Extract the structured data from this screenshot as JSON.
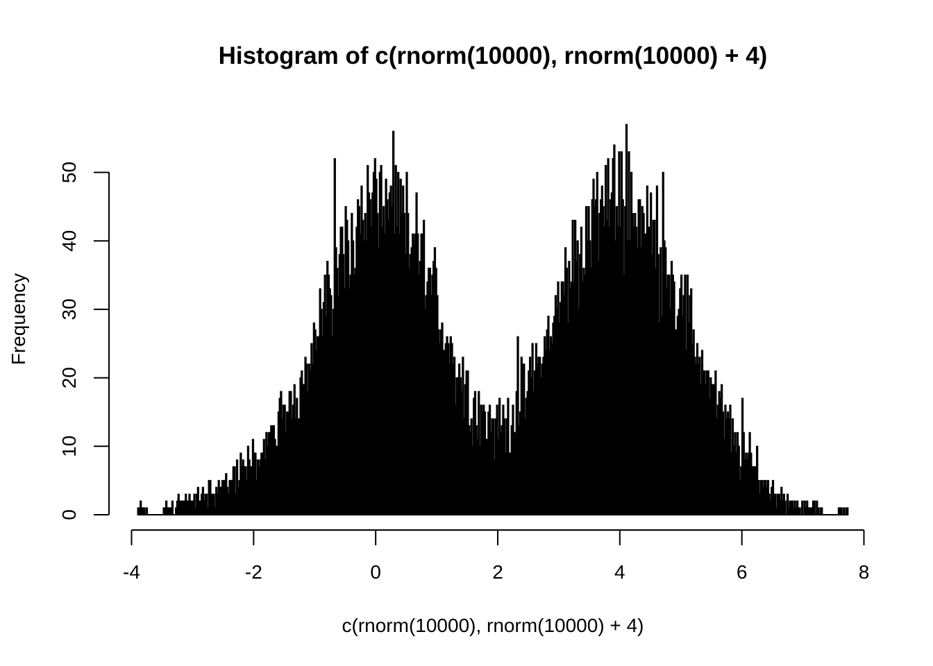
{
  "chart_data": {
    "type": "bar",
    "title": "Histogram of c(rnorm(10000), rnorm(10000) + 4)",
    "xlabel": "c(rnorm(10000), rnorm(10000) + 4)",
    "ylabel": "Frequency",
    "xlim": [
      -4,
      8
    ],
    "ylim": [
      0,
      57
    ],
    "x_ticks": [
      -4,
      -2,
      0,
      2,
      4,
      6,
      8
    ],
    "y_ticks": [
      0,
      10,
      20,
      30,
      40,
      50
    ],
    "bin_width": 0.02,
    "bin_start": -3.9,
    "grid": false,
    "legend": "none",
    "envelope": [
      [
        -3.9,
        1
      ],
      [
        -3.6,
        0
      ],
      [
        -3.4,
        1
      ],
      [
        -3.2,
        2
      ],
      [
        -3.0,
        2
      ],
      [
        -2.8,
        3
      ],
      [
        -2.6,
        4
      ],
      [
        -2.4,
        5
      ],
      [
        -2.2,
        6
      ],
      [
        -2.0,
        8
      ],
      [
        -1.8,
        10
      ],
      [
        -1.6,
        13
      ],
      [
        -1.4,
        16
      ],
      [
        -1.2,
        21
      ],
      [
        -1.0,
        26
      ],
      [
        -0.8,
        31
      ],
      [
        -0.6,
        37
      ],
      [
        -0.4,
        41
      ],
      [
        -0.2,
        44
      ],
      [
        0.0,
        46
      ],
      [
        0.2,
        45
      ],
      [
        0.4,
        43
      ],
      [
        0.6,
        40
      ],
      [
        0.8,
        36
      ],
      [
        1.0,
        31
      ],
      [
        1.2,
        25
      ],
      [
        1.4,
        20
      ],
      [
        1.6,
        16
      ],
      [
        1.8,
        14
      ],
      [
        2.0,
        13
      ],
      [
        2.2,
        14
      ],
      [
        2.4,
        17
      ],
      [
        2.6,
        21
      ],
      [
        2.8,
        25
      ],
      [
        3.0,
        31
      ],
      [
        3.2,
        36
      ],
      [
        3.4,
        40
      ],
      [
        3.6,
        44
      ],
      [
        3.8,
        46
      ],
      [
        4.0,
        47
      ],
      [
        4.2,
        45
      ],
      [
        4.4,
        43
      ],
      [
        4.6,
        40
      ],
      [
        4.8,
        36
      ],
      [
        5.0,
        31
      ],
      [
        5.2,
        26
      ],
      [
        5.4,
        21
      ],
      [
        5.6,
        16
      ],
      [
        5.8,
        12
      ],
      [
        6.0,
        9
      ],
      [
        6.2,
        7
      ],
      [
        6.4,
        4
      ],
      [
        6.6,
        3
      ],
      [
        6.8,
        2
      ],
      [
        7.0,
        1
      ],
      [
        7.2,
        1
      ],
      [
        7.4,
        0
      ],
      [
        7.72,
        1
      ]
    ],
    "spikes": [
      [
        -3.9,
        1
      ],
      [
        -0.68,
        52
      ],
      [
        0.08,
        51
      ],
      [
        0.66,
        47
      ],
      [
        1.72,
        16
      ],
      [
        2.32,
        26
      ],
      [
        4.1,
        57
      ],
      [
        4.7,
        50
      ],
      [
        5.56,
        21
      ],
      [
        6.0,
        17
      ],
      [
        7.72,
        1
      ]
    ]
  }
}
